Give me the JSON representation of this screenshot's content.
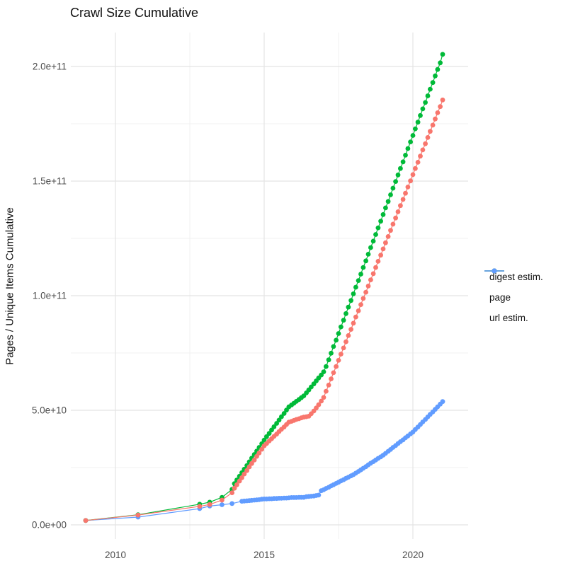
{
  "title": "Crawl Size Cumulative",
  "axes": {
    "y_label": "Pages / Unique Items Cumulative",
    "x_tick_labels": [
      "2010",
      "2015",
      "2020"
    ],
    "y_tick_labels": [
      "0.0e+00",
      "5.0e+10",
      "1.0e+11",
      "1.5e+11",
      "2.0e+11"
    ]
  },
  "legend": {
    "items": [
      {
        "label": "digest estim.",
        "color": "#F8766D"
      },
      {
        "label": "page",
        "color": "#00BA38"
      },
      {
        "label": "url estim.",
        "color": "#619CFF"
      }
    ]
  },
  "colors": {
    "digest": "#F8766D",
    "page": "#00BA38",
    "url": "#619CFF",
    "grid_major": "#E4E4E4",
    "grid_minor": "#F0F0F0",
    "tick_text": "#4D4D4D",
    "title_text": "#111111"
  },
  "chart_data": {
    "type": "line",
    "title": "Crawl Size Cumulative",
    "xlabel": "",
    "ylabel": "Pages / Unique Items Cumulative",
    "x_unit": "decimal year",
    "value_unit_multiplier": 1000000000.0,
    "xlim": [
      2008.5,
      2021.9
    ],
    "ylim": [
      0,
      215000000000.0
    ],
    "grid": true,
    "legend_position": "right",
    "x_major_ticks": [
      2010,
      2015,
      2020
    ],
    "x_minor_ticks": [
      2012.5,
      2017.5
    ],
    "y_major_ticks_e9": [
      0,
      50,
      100,
      150,
      200
    ],
    "y_minor_ticks_e9": [
      25,
      75,
      125,
      175
    ],
    "series": [
      {
        "name": "digest estim.",
        "color": "#F8766D",
        "x": [
          2009,
          2010.76,
          2012.83,
          2013.17,
          2013.58,
          2013.92,
          2014,
          2014.08,
          2014.17,
          2014.25,
          2014.33,
          2014.42,
          2014.5,
          2014.58,
          2014.67,
          2014.75,
          2014.83,
          2014.92,
          2015,
          2015.08,
          2015.17,
          2015.25,
          2015.33,
          2015.42,
          2015.5,
          2015.58,
          2015.67,
          2015.75,
          2015.83,
          2015.92,
          2016,
          2016.08,
          2016.17,
          2016.25,
          2016.33,
          2016.42,
          2016.5,
          2016.58,
          2016.67,
          2016.75,
          2016.83,
          2016.92,
          2017,
          2017.08,
          2017.17,
          2017.25,
          2017.33,
          2017.42,
          2017.5,
          2017.58,
          2017.67,
          2017.75,
          2017.83,
          2017.92,
          2018,
          2018.08,
          2018.17,
          2018.25,
          2018.33,
          2018.42,
          2018.5,
          2018.58,
          2018.67,
          2018.75,
          2018.83,
          2018.92,
          2019,
          2019.08,
          2019.17,
          2019.25,
          2019.33,
          2019.42,
          2019.5,
          2019.58,
          2019.67,
          2019.75,
          2019.83,
          2019.92,
          2020,
          2020.08,
          2020.17,
          2020.25,
          2020.33,
          2020.42,
          2020.5,
          2020.58,
          2020.67,
          2020.75,
          2020.83,
          2020.92,
          2021
        ],
        "values_e9": [
          1.9,
          4.3,
          8.1,
          8.9,
          10.8,
          14,
          16,
          17.5,
          19.1,
          20.6,
          22.2,
          23.7,
          25.3,
          26.8,
          28.3,
          29.9,
          31.4,
          33,
          34.5,
          35.5,
          36.6,
          37.6,
          38.6,
          39.6,
          40.7,
          41.7,
          42.7,
          43.8,
          44.8,
          45.2,
          45.6,
          46,
          46.3,
          46.7,
          47,
          47.2,
          47.4,
          48.5,
          49.7,
          51,
          52.4,
          54,
          55.6,
          58.3,
          61,
          63.7,
          66.4,
          69.1,
          71.8,
          74.5,
          77.2,
          79.9,
          82.6,
          85.3,
          88,
          90.7,
          93.4,
          96.1,
          98.8,
          101.5,
          104.2,
          106.9,
          109.6,
          112.3,
          115,
          117.7,
          120.4,
          123.1,
          125.8,
          128.5,
          131.2,
          133.9,
          136.6,
          139.3,
          142,
          144.7,
          147.4,
          150.1,
          152.8,
          155.5,
          158.2,
          160.9,
          163.6,
          166.3,
          169,
          171.7,
          174.4,
          177.1,
          179.8,
          182.5,
          185.4
        ]
      },
      {
        "name": "page",
        "color": "#00BA38",
        "x": [
          2009,
          2010.76,
          2012.83,
          2013.17,
          2013.58,
          2013.92,
          2014,
          2014.08,
          2014.17,
          2014.25,
          2014.33,
          2014.42,
          2014.5,
          2014.58,
          2014.67,
          2014.75,
          2014.83,
          2014.92,
          2015,
          2015.08,
          2015.17,
          2015.25,
          2015.33,
          2015.42,
          2015.5,
          2015.58,
          2015.67,
          2015.75,
          2015.83,
          2015.92,
          2016,
          2016.08,
          2016.17,
          2016.25,
          2016.33,
          2016.42,
          2016.5,
          2016.58,
          2016.67,
          2016.75,
          2016.83,
          2016.92,
          2017,
          2017.08,
          2017.17,
          2017.25,
          2017.33,
          2017.42,
          2017.5,
          2017.58,
          2017.67,
          2017.75,
          2017.83,
          2017.92,
          2018,
          2018.08,
          2018.17,
          2018.25,
          2018.33,
          2018.42,
          2018.5,
          2018.58,
          2018.67,
          2018.75,
          2018.83,
          2018.92,
          2019,
          2019.08,
          2019.17,
          2019.25,
          2019.33,
          2019.42,
          2019.5,
          2019.58,
          2019.67,
          2019.75,
          2019.83,
          2019.92,
          2020,
          2020.08,
          2020.17,
          2020.25,
          2020.33,
          2020.42,
          2020.5,
          2020.58,
          2020.67,
          2020.75,
          2020.83,
          2020.92,
          2021
        ],
        "values_e9": [
          1.9,
          4.4,
          9,
          9.9,
          12,
          15.5,
          18,
          19.6,
          21.2,
          22.8,
          24.3,
          25.9,
          27.5,
          29.1,
          30.7,
          32.2,
          33.8,
          35.4,
          37,
          38.5,
          39.9,
          41.4,
          42.8,
          44.3,
          45.7,
          47.2,
          48.6,
          50.1,
          51.5,
          52.3,
          53.1,
          53.9,
          54.7,
          55.5,
          56.3,
          57.6,
          58.9,
          60.2,
          61.5,
          62.8,
          64.1,
          65.4,
          66.8,
          69.1,
          72,
          74.9,
          77.8,
          80.6,
          83.5,
          86.4,
          89.3,
          92.2,
          95,
          97.9,
          100.8,
          103.7,
          106.6,
          109.4,
          112.3,
          115.2,
          118.1,
          121,
          123.8,
          126.7,
          129.6,
          132.5,
          135.4,
          138.3,
          141.1,
          144,
          146.9,
          149.8,
          152.7,
          155.5,
          158.4,
          161.3,
          164.2,
          167.1,
          169.9,
          172.8,
          175.7,
          178.6,
          181.5,
          184.3,
          187.2,
          190.1,
          193,
          195.9,
          198.7,
          201.6,
          205.3
        ]
      },
      {
        "name": "url estim.",
        "color": "#619CFF",
        "x": [
          2009,
          2010.76,
          2012.83,
          2013.17,
          2013.58,
          2013.92,
          2014.25,
          2014.33,
          2014.42,
          2014.5,
          2014.58,
          2014.67,
          2014.75,
          2014.83,
          2014.92,
          2015,
          2015.08,
          2015.17,
          2015.25,
          2015.33,
          2015.42,
          2015.5,
          2015.58,
          2015.67,
          2015.75,
          2015.83,
          2015.92,
          2016,
          2016.08,
          2016.17,
          2016.25,
          2016.33,
          2016.42,
          2016.5,
          2016.58,
          2016.67,
          2016.75,
          2016.83,
          2016.92,
          2017,
          2017.08,
          2017.17,
          2017.25,
          2017.33,
          2017.42,
          2017.5,
          2017.58,
          2017.67,
          2017.75,
          2017.83,
          2017.92,
          2018,
          2018.08,
          2018.17,
          2018.25,
          2018.33,
          2018.42,
          2018.5,
          2018.58,
          2018.67,
          2018.75,
          2018.83,
          2018.92,
          2019,
          2019.08,
          2019.17,
          2019.25,
          2019.33,
          2019.42,
          2019.5,
          2019.58,
          2019.67,
          2019.75,
          2019.83,
          2019.92,
          2020,
          2020.08,
          2020.17,
          2020.25,
          2020.33,
          2020.42,
          2020.5,
          2020.58,
          2020.67,
          2020.75,
          2020.83,
          2020.92,
          2021
        ],
        "values_e9": [
          1.9,
          3.4,
          7.1,
          8.2,
          8.8,
          9.3,
          10.3,
          10.4,
          10.5,
          10.6,
          10.7,
          10.8,
          10.9,
          11,
          11.2,
          11.3,
          11.3,
          11.4,
          11.4,
          11.5,
          11.5,
          11.6,
          11.6,
          11.7,
          11.7,
          11.8,
          11.9,
          11.9,
          11.9,
          12,
          12,
          12,
          12.3,
          12.4,
          12.5,
          12.6,
          12.8,
          13,
          14.9,
          15.3,
          15.9,
          16.4,
          17,
          17.5,
          18.1,
          18.6,
          19.2,
          19.7,
          20.3,
          20.8,
          21.4,
          21.9,
          22.6,
          23.3,
          24,
          24.7,
          25.4,
          26.2,
          26.9,
          27.6,
          28.3,
          29,
          29.7,
          30.4,
          31.2,
          32.1,
          32.9,
          33.8,
          34.6,
          35.5,
          36.3,
          37.1,
          38,
          38.8,
          39.7,
          40.5,
          41.6,
          42.7,
          43.8,
          44.9,
          46,
          47.1,
          48.2,
          49.3,
          50.4,
          51.5,
          52.7,
          53.8
        ]
      }
    ]
  }
}
